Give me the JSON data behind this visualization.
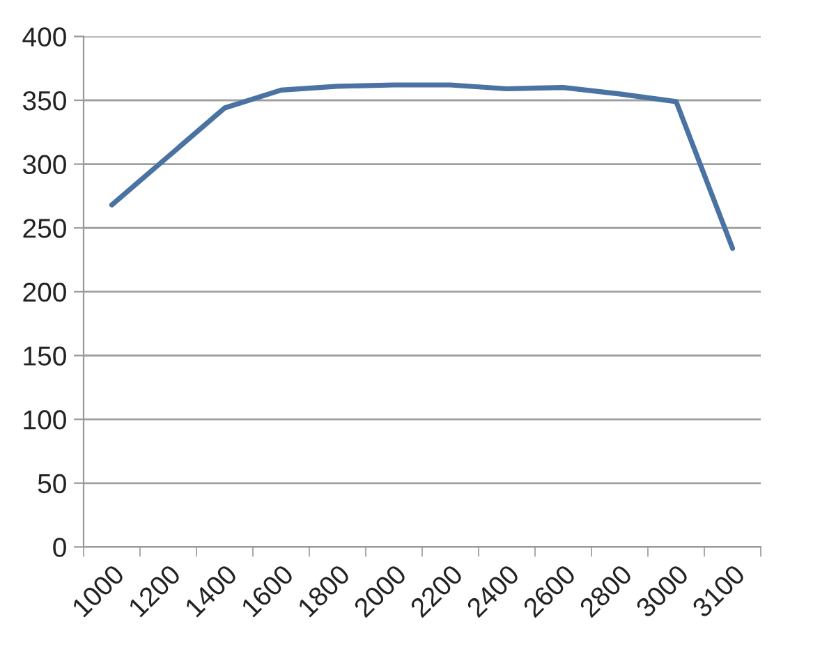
{
  "chart_data": {
    "type": "line",
    "categories": [
      "1000",
      "1200",
      "1400",
      "1600",
      "1800",
      "2000",
      "2200",
      "2400",
      "2600",
      "2800",
      "3000",
      "3100"
    ],
    "series": [
      {
        "color": "#4a72a2",
        "values": [
          268,
          306,
          344,
          358,
          361,
          362,
          362,
          359,
          360,
          355,
          349,
          234
        ]
      }
    ],
    "ylim": [
      0,
      400
    ],
    "yticks": [
      0,
      50,
      100,
      150,
      200,
      250,
      300,
      350,
      400
    ],
    "grid": "y",
    "marker": "none",
    "line_style": "solid"
  }
}
